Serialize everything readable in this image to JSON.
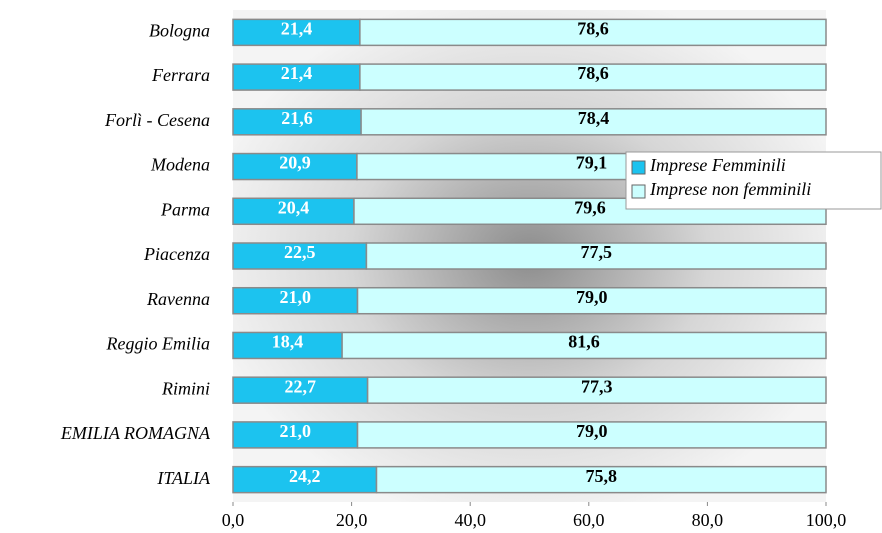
{
  "chart_data": {
    "type": "stacked_barh",
    "categories": [
      "Bologna",
      "Ferrara",
      "Forlì - Cesena",
      "Modena",
      "Parma",
      "Piacenza",
      "Ravenna",
      "Reggio Emilia",
      "Rimini",
      "EMILIA ROMAGNA",
      "ITALIA"
    ],
    "series": [
      {
        "name": "Imprese Femminili",
        "color": "#1cc3ef",
        "values": [
          21.4,
          21.4,
          21.6,
          20.9,
          20.4,
          22.5,
          21.0,
          18.4,
          22.7,
          21.0,
          24.2
        ],
        "value_labels": [
          "21,4",
          "21,4",
          "21,6",
          "20,9",
          "20,4",
          "22,5",
          "21,0",
          "18,4",
          "22,7",
          "21,0",
          "24,2"
        ]
      },
      {
        "name": "Imprese non femminili",
        "color": "#ccffff",
        "values": [
          78.6,
          78.6,
          78.4,
          79.1,
          79.6,
          77.5,
          79.0,
          81.6,
          77.3,
          79.0,
          75.8
        ],
        "value_labels": [
          "78,6",
          "78,6",
          "78,4",
          "79,1",
          "79,6",
          "77,5",
          "79,0",
          "81,6",
          "77,3",
          "79,0",
          "75,8"
        ]
      }
    ],
    "xlim": [
      0,
      100
    ],
    "xticks": [
      {
        "value": 0,
        "label": "0,0"
      },
      {
        "value": 20,
        "label": "20,0"
      },
      {
        "value": 40,
        "label": "40,0"
      },
      {
        "value": 60,
        "label": "60,0"
      },
      {
        "value": 80,
        "label": "80,0"
      },
      {
        "value": 100,
        "label": "100,0"
      }
    ],
    "legend": "right"
  }
}
